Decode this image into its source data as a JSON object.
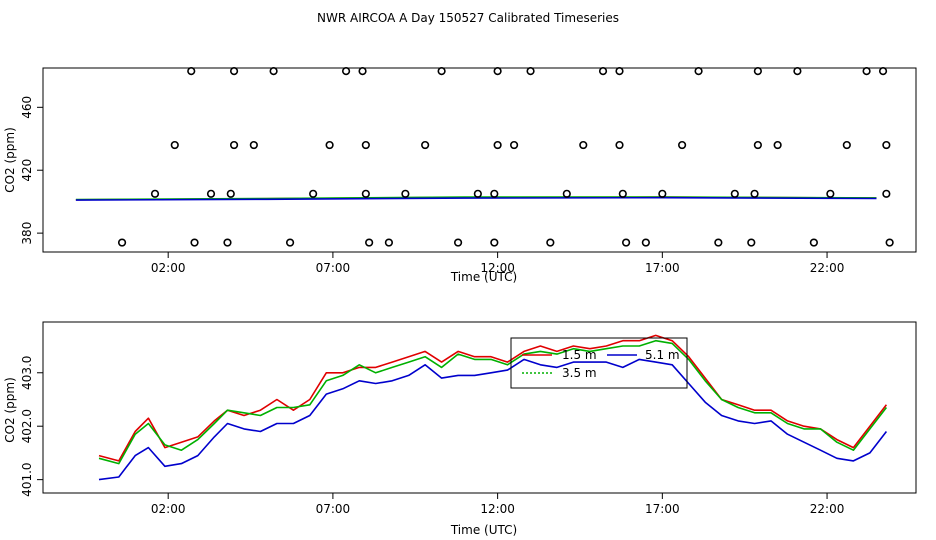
{
  "title": "NWR AIRCOA A  Day 150527  Calibrated Timeseries",
  "chart_data": [
    {
      "type": "scatter+line",
      "xlabel": "Time (UTC)",
      "ylabel": "CO2 (ppm)",
      "x_tick_labels": [
        "02:00",
        "07:00",
        "12:00",
        "17:00",
        "22:00"
      ],
      "x_ticks_hours": [
        2,
        7,
        12,
        17,
        22
      ],
      "y_ticks": [
        380,
        420,
        460
      ],
      "xlim": [
        -1.8,
        24.7
      ],
      "ylim": [
        368,
        485
      ],
      "calibration_points": [
        {
          "t": 0.6,
          "v": 374
        },
        {
          "t": 1.6,
          "v": 405
        },
        {
          "t": 2.2,
          "v": 436
        },
        {
          "t": 2.7,
          "v": 483
        },
        {
          "t": 2.8,
          "v": 374
        },
        {
          "t": 3.3,
          "v": 405
        },
        {
          "t": 3.8,
          "v": 374
        },
        {
          "t": 3.9,
          "v": 405
        },
        {
          "t": 4.0,
          "v": 436
        },
        {
          "t": 4.0,
          "v": 483
        },
        {
          "t": 4.6,
          "v": 436
        },
        {
          "t": 5.2,
          "v": 483
        },
        {
          "t": 5.7,
          "v": 374
        },
        {
          "t": 6.4,
          "v": 405
        },
        {
          "t": 6.9,
          "v": 436
        },
        {
          "t": 7.4,
          "v": 483
        },
        {
          "t": 7.9,
          "v": 483
        },
        {
          "t": 8.0,
          "v": 436
        },
        {
          "t": 8.0,
          "v": 405
        },
        {
          "t": 8.1,
          "v": 374
        },
        {
          "t": 8.7,
          "v": 374
        },
        {
          "t": 9.2,
          "v": 405
        },
        {
          "t": 9.8,
          "v": 436
        },
        {
          "t": 10.3,
          "v": 483
        },
        {
          "t": 10.8,
          "v": 374
        },
        {
          "t": 11.4,
          "v": 405
        },
        {
          "t": 11.9,
          "v": 374
        },
        {
          "t": 11.9,
          "v": 405
        },
        {
          "t": 12.0,
          "v": 436
        },
        {
          "t": 12.0,
          "v": 483
        },
        {
          "t": 12.5,
          "v": 436
        },
        {
          "t": 13.0,
          "v": 483
        },
        {
          "t": 13.6,
          "v": 374
        },
        {
          "t": 14.1,
          "v": 405
        },
        {
          "t": 14.6,
          "v": 436
        },
        {
          "t": 15.2,
          "v": 483
        },
        {
          "t": 15.7,
          "v": 483
        },
        {
          "t": 15.7,
          "v": 436
        },
        {
          "t": 15.8,
          "v": 405
        },
        {
          "t": 15.9,
          "v": 374
        },
        {
          "t": 16.5,
          "v": 374
        },
        {
          "t": 17.0,
          "v": 405
        },
        {
          "t": 17.6,
          "v": 436
        },
        {
          "t": 18.1,
          "v": 483
        },
        {
          "t": 18.7,
          "v": 374
        },
        {
          "t": 19.2,
          "v": 405
        },
        {
          "t": 19.7,
          "v": 374
        },
        {
          "t": 19.8,
          "v": 405
        },
        {
          "t": 19.9,
          "v": 436
        },
        {
          "t": 19.9,
          "v": 483
        },
        {
          "t": 20.5,
          "v": 436
        },
        {
          "t": 21.1,
          "v": 483
        },
        {
          "t": 21.6,
          "v": 374
        },
        {
          "t": 22.1,
          "v": 405
        },
        {
          "t": 22.6,
          "v": 436
        },
        {
          "t": 23.2,
          "v": 483
        },
        {
          "t": 23.7,
          "v": 483
        },
        {
          "t": 23.8,
          "v": 436
        },
        {
          "t": 23.8,
          "v": 405
        },
        {
          "t": 23.9,
          "v": 374
        }
      ],
      "baseline_series": [
        {
          "name": "1.5 m",
          "color": "#e00000",
          "t": [
            -0.8,
            5.0,
            11.0,
            17.0,
            23.5
          ],
          "v": [
            401.2,
            401.9,
            402.8,
            402.9,
            402.3
          ]
        },
        {
          "name": "3.5 m",
          "color": "#00b000",
          "t": [
            -0.8,
            5.0,
            11.0,
            17.0,
            23.5
          ],
          "v": [
            401.3,
            402.0,
            402.9,
            403.0,
            402.4
          ]
        },
        {
          "name": "5.1 m",
          "color": "#0000cc",
          "t": [
            -0.8,
            5.0,
            11.0,
            17.0,
            23.5
          ],
          "v": [
            401.0,
            401.5,
            402.3,
            402.5,
            402.0
          ]
        }
      ]
    },
    {
      "type": "line",
      "xlabel": "Time (UTC)",
      "ylabel": "CO2 (ppm)",
      "x_tick_labels": [
        "02:00",
        "07:00",
        "12:00",
        "17:00",
        "22:00"
      ],
      "x_ticks_hours": [
        2,
        7,
        12,
        17,
        22
      ],
      "y_tick_labels": [
        "401.0",
        "402.0",
        "403.0"
      ],
      "y_ticks": [
        401.0,
        402.0,
        403.0
      ],
      "xlim": [
        -1.8,
        24.7
      ],
      "ylim": [
        400.75,
        403.95
      ],
      "legend": {
        "position": "top-center",
        "entries": [
          "1.5 m",
          "5.1 m",
          "3.5 m"
        ]
      },
      "series": [
        {
          "name": "1.5 m",
          "color": "#e00000",
          "t": [
            -0.1,
            0.5,
            1.0,
            1.4,
            1.9,
            2.4,
            2.9,
            3.4,
            3.8,
            4.3,
            4.8,
            5.3,
            5.8,
            6.3,
            6.8,
            7.3,
            7.8,
            8.3,
            8.8,
            9.3,
            9.8,
            10.3,
            10.8,
            11.3,
            11.8,
            12.3,
            12.8,
            13.3,
            13.8,
            14.3,
            14.8,
            15.3,
            15.8,
            16.3,
            16.8,
            17.3,
            17.8,
            18.3,
            18.8,
            19.3,
            19.8,
            20.3,
            20.8,
            21.3,
            21.8,
            22.3,
            22.8,
            23.3,
            23.8
          ],
          "v": [
            401.45,
            401.35,
            401.9,
            402.15,
            401.6,
            401.7,
            401.8,
            402.1,
            402.3,
            402.2,
            402.3,
            402.5,
            402.3,
            402.5,
            403.0,
            403.0,
            403.1,
            403.1,
            403.2,
            403.3,
            403.4,
            403.2,
            403.4,
            403.3,
            403.3,
            403.2,
            403.4,
            403.5,
            403.4,
            403.5,
            403.45,
            403.5,
            403.6,
            403.6,
            403.7,
            403.6,
            403.3,
            402.9,
            402.5,
            402.4,
            402.3,
            402.3,
            402.1,
            402.0,
            401.95,
            401.75,
            401.6,
            402.0,
            402.4
          ]
        },
        {
          "name": "3.5 m",
          "color": "#00b000",
          "t": [
            -0.1,
            0.5,
            1.0,
            1.4,
            1.9,
            2.4,
            2.9,
            3.4,
            3.8,
            4.3,
            4.8,
            5.3,
            5.8,
            6.3,
            6.8,
            7.3,
            7.8,
            8.3,
            8.8,
            9.3,
            9.8,
            10.3,
            10.8,
            11.3,
            11.8,
            12.3,
            12.8,
            13.3,
            13.8,
            14.3,
            14.8,
            15.3,
            15.8,
            16.3,
            16.8,
            17.3,
            17.8,
            18.3,
            18.8,
            19.3,
            19.8,
            20.3,
            20.8,
            21.3,
            21.8,
            22.3,
            22.8,
            23.3,
            23.8
          ],
          "v": [
            401.4,
            401.3,
            401.85,
            402.05,
            401.65,
            401.55,
            401.75,
            402.05,
            402.3,
            402.25,
            402.2,
            402.35,
            402.35,
            402.4,
            402.85,
            402.95,
            403.15,
            403.0,
            403.1,
            403.2,
            403.3,
            403.1,
            403.35,
            403.25,
            403.25,
            403.15,
            403.35,
            403.4,
            403.35,
            403.45,
            403.4,
            403.45,
            403.5,
            403.5,
            403.6,
            403.55,
            403.25,
            402.85,
            402.5,
            402.35,
            402.25,
            402.25,
            402.05,
            401.95,
            401.95,
            401.7,
            401.55,
            401.95,
            402.35
          ]
        },
        {
          "name": "5.1 m",
          "color": "#0000cc",
          "t": [
            -0.1,
            0.5,
            1.0,
            1.4,
            1.9,
            2.4,
            2.9,
            3.4,
            3.8,
            4.3,
            4.8,
            5.3,
            5.8,
            6.3,
            6.8,
            7.3,
            7.8,
            8.3,
            8.8,
            9.3,
            9.8,
            10.3,
            10.8,
            11.3,
            11.8,
            12.3,
            12.8,
            13.3,
            13.8,
            14.3,
            14.8,
            15.3,
            15.8,
            16.3,
            16.8,
            17.3,
            17.8,
            18.3,
            18.8,
            19.3,
            19.8,
            20.3,
            20.8,
            21.3,
            21.8,
            22.3,
            22.8,
            23.3,
            23.8
          ],
          "v": [
            401.0,
            401.05,
            401.45,
            401.6,
            401.25,
            401.3,
            401.45,
            401.8,
            402.05,
            401.95,
            401.9,
            402.05,
            402.05,
            402.2,
            402.6,
            402.7,
            402.85,
            402.8,
            402.85,
            402.95,
            403.15,
            402.9,
            402.95,
            402.95,
            403.0,
            403.05,
            403.25,
            403.15,
            403.1,
            403.2,
            403.2,
            403.2,
            403.1,
            403.25,
            403.2,
            403.15,
            402.8,
            402.45,
            402.2,
            402.1,
            402.05,
            402.1,
            401.85,
            401.7,
            401.55,
            401.4,
            401.35,
            401.5,
            401.9
          ]
        }
      ]
    }
  ]
}
